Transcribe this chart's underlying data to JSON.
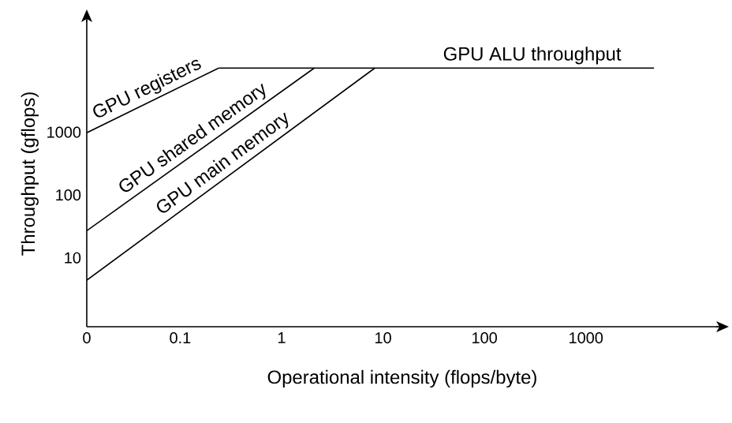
{
  "chart_data": {
    "type": "line",
    "xlabel": "Operational intensity (flops/byte)",
    "ylabel": "Throughput (gflops)",
    "log": "xy",
    "xlim": [
      0.012,
      20000
    ],
    "ylim": [
      0.8,
      60000
    ],
    "xticks": [
      {
        "value": 0.012,
        "label": "0"
      },
      0.1,
      1,
      10,
      100,
      1000
    ],
    "yticks": [
      10,
      100,
      1000
    ],
    "line_style": "solid",
    "series": [
      {
        "name": "GPU ALU throughput",
        "color": "#000000",
        "x": [
          0.24,
          4700
        ],
        "values": [
          10500,
          10500
        ]
      },
      {
        "name": "GPU registers",
        "color": "#000000",
        "x": [
          0.012,
          0.24
        ],
        "values": [
          980,
          10500
        ]
      },
      {
        "name": "GPU shared memory",
        "color": "#000000",
        "x": [
          0.012,
          2.1
        ],
        "values": [
          27,
          10500
        ]
      },
      {
        "name": "GPU main memory",
        "color": "#000000",
        "x": [
          0.012,
          8.3
        ],
        "values": [
          4.4,
          10500
        ]
      }
    ]
  }
}
